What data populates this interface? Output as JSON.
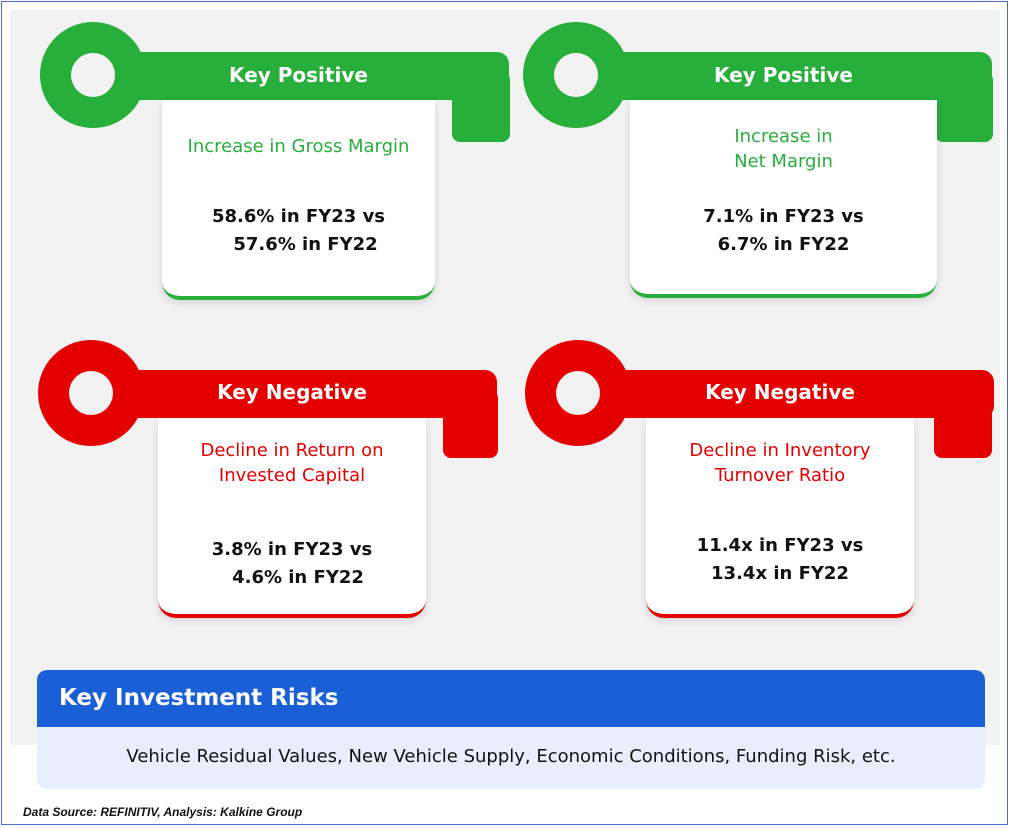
{
  "colors": {
    "positive": "#27ae3b",
    "negative": "#e50000",
    "risk_header": "#1a5fd6",
    "risk_body": "#e8eefc"
  },
  "cards": [
    {
      "kind": "positive",
      "label": "Key Positive",
      "headline": "Increase in Gross Margin",
      "detail_line1": "58.6% in FY23 vs",
      "detail_line2": "57.6% in FY22"
    },
    {
      "kind": "positive",
      "label": "Key Positive",
      "headline_line1": "Increase in",
      "headline_line2": "Net Margin",
      "detail_line1": "7.1% in FY23 vs",
      "detail_line2": "6.7% in FY22"
    },
    {
      "kind": "negative",
      "label": "Key Negative",
      "headline_line1": "Decline in Return on",
      "headline_line2": "Invested Capital",
      "detail_line1": "3.8% in FY23 vs",
      "detail_line2": "4.6% in FY22"
    },
    {
      "kind": "negative",
      "label": "Key Negative",
      "headline_line1": "Decline in Inventory",
      "headline_line2": "Turnover Ratio",
      "detail_line1": "11.4x in FY23 vs",
      "detail_line2": "13.4x in FY22"
    }
  ],
  "risks": {
    "title": "Key Investment Risks",
    "text": "Vehicle Residual Values, New Vehicle Supply, Economic Conditions, Funding Risk, etc."
  },
  "source": "Data Source: REFINITIV, Analysis: Kalkine Group"
}
